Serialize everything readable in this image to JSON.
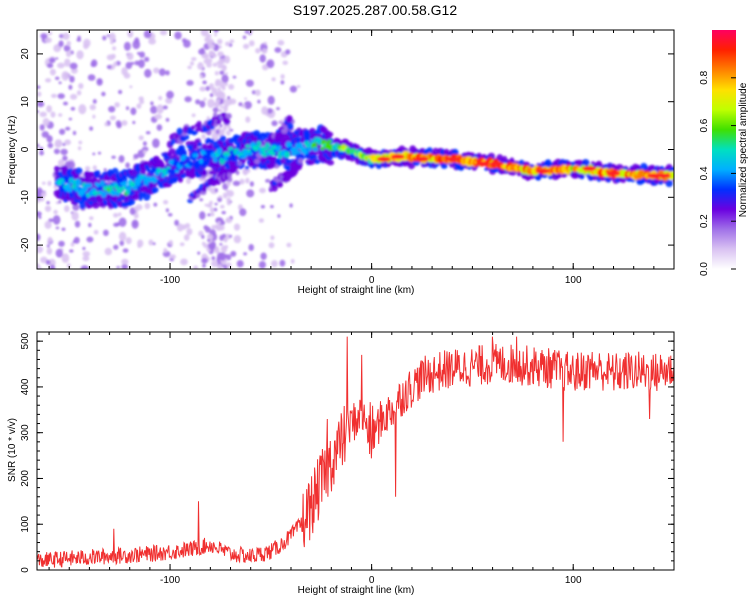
{
  "title": "S197.2025.287.00.58.G12",
  "chart_data": [
    {
      "type": "heatmap",
      "title": "S197.2025.287.00.58.G12",
      "xlabel": "Height of straight line (km)",
      "ylabel": "Frequency (Hz)",
      "xlim": [
        -166,
        150
      ],
      "ylim": [
        -25,
        25
      ],
      "xticks": [
        -100,
        0,
        100
      ],
      "yticks": [
        -20,
        -10,
        0,
        10,
        20
      ],
      "colorbar": {
        "label": "Normalized spectral amplitude",
        "range": [
          0,
          1
        ],
        "ticks": [
          "0.0",
          "0.2",
          "0.4",
          "0.6",
          "0.8"
        ],
        "colors": [
          "#ffffff",
          "#d9c2f2",
          "#a070e8",
          "#6a00e0",
          "#0030ff",
          "#00b0ff",
          "#00e0c0",
          "#40e000",
          "#c0ff00",
          "#ffe000",
          "#ff8000",
          "#ff2000",
          "#ff0060"
        ]
      },
      "ridge": {
        "description_points": [
          {
            "x": -156,
            "f": -7,
            "amp": 0.45
          },
          {
            "x": -140,
            "f": -8.5,
            "amp": 0.5
          },
          {
            "x": -120,
            "f": -8,
            "amp": 0.5
          },
          {
            "x": -105,
            "f": -5,
            "amp": 0.45
          },
          {
            "x": -90,
            "f": -2,
            "amp": 0.4
          },
          {
            "x": -70,
            "f": -1,
            "amp": 0.45
          },
          {
            "x": -55,
            "f": 0,
            "amp": 0.5
          },
          {
            "x": -40,
            "f": 0,
            "amp": 0.45
          },
          {
            "x": -25,
            "f": 1,
            "amp": 0.55
          },
          {
            "x": -12,
            "f": 0,
            "amp": 0.6
          },
          {
            "x": 0,
            "f": -2,
            "amp": 0.7
          },
          {
            "x": 15,
            "f": -1.5,
            "amp": 0.85
          },
          {
            "x": 40,
            "f": -2,
            "amp": 0.9
          },
          {
            "x": 60,
            "f": -3,
            "amp": 0.9
          },
          {
            "x": 80,
            "f": -4.5,
            "amp": 0.85
          },
          {
            "x": 100,
            "f": -4,
            "amp": 0.8
          },
          {
            "x": 120,
            "f": -5,
            "amp": 0.85
          },
          {
            "x": 145,
            "f": -5.5,
            "amp": 0.85
          }
        ]
      }
    },
    {
      "type": "line",
      "xlabel": "Height of straight line (km)",
      "ylabel": "SNR (10 * v/v)",
      "xlim": [
        -166,
        150
      ],
      "ylim": [
        0,
        520
      ],
      "xticks": [
        -100,
        0,
        100
      ],
      "yticks": [
        0,
        100,
        200,
        300,
        400,
        500
      ],
      "color": "#f03030",
      "series": [
        {
          "name": "SNR",
          "x": [
            -166,
            -150,
            -130,
            -110,
            -100,
            -90,
            -80,
            -70,
            -60,
            -50,
            -45,
            -40,
            -35,
            -30,
            -25,
            -20,
            -15,
            -10,
            -5,
            0,
            5,
            10,
            15,
            20,
            25,
            30,
            40,
            50,
            60,
            70,
            80,
            90,
            100,
            110,
            120,
            130,
            140,
            150
          ],
          "y": [
            20,
            25,
            30,
            35,
            40,
            45,
            55,
            35,
            30,
            40,
            55,
            75,
            100,
            140,
            190,
            240,
            280,
            320,
            340,
            290,
            330,
            350,
            380,
            400,
            420,
            430,
            440,
            445,
            450,
            450,
            445,
            440,
            430,
            440,
            430,
            435,
            430,
            440
          ]
        }
      ],
      "spikes": [
        {
          "x": -128,
          "y": 90
        },
        {
          "x": -86,
          "y": 150
        },
        {
          "x": -22,
          "y": 330
        },
        {
          "x": -12,
          "y": 510
        },
        {
          "x": -5,
          "y": 470
        },
        {
          "x": 12,
          "y": 160
        },
        {
          "x": 60,
          "y": 510
        },
        {
          "x": 72,
          "y": 510
        },
        {
          "x": 95,
          "y": 280
        },
        {
          "x": 138,
          "y": 330
        }
      ]
    }
  ]
}
